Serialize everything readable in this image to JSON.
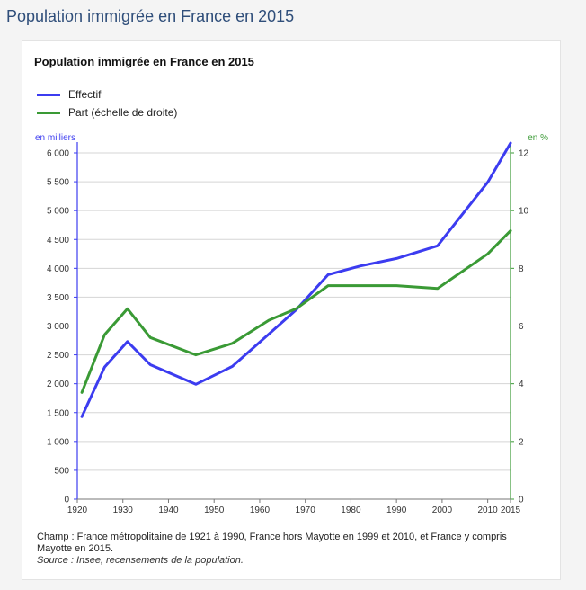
{
  "page": {
    "title": "Population immigrée en France en 2015"
  },
  "colors": {
    "effectif": "#3c3cf0",
    "part": "#3a9a35",
    "grid": "#d5d5d5",
    "left_axis": "#3c3cf0",
    "right_axis": "#3a9a35"
  },
  "chart_data": {
    "type": "line",
    "title": "Population immigrée en France en 2015",
    "legend_placement": "top-left",
    "grid": true,
    "y_unit_left": "en milliers",
    "y_unit_right": "en %",
    "xlim": [
      1920,
      2015
    ],
    "ylim_left": [
      0,
      6000
    ],
    "ylim_right": [
      0,
      12
    ],
    "x_ticks": [
      {
        "value": 1920,
        "label": "1920"
      },
      {
        "value": 1930,
        "label": "1930"
      },
      {
        "value": 1940,
        "label": "1940"
      },
      {
        "value": 1950,
        "label": "1950"
      },
      {
        "value": 1960,
        "label": "1960"
      },
      {
        "value": 1970,
        "label": "1970"
      },
      {
        "value": 1980,
        "label": "1980"
      },
      {
        "value": 1990,
        "label": "1990"
      },
      {
        "value": 2000,
        "label": "2000"
      },
      {
        "value": 2010,
        "label": "2010"
      },
      {
        "value": 2015,
        "label": "2015"
      }
    ],
    "y_ticks_left": [
      {
        "value": 0,
        "label": "0"
      },
      {
        "value": 500,
        "label": "500"
      },
      {
        "value": 1000,
        "label": "1 000"
      },
      {
        "value": 1500,
        "label": "1 500"
      },
      {
        "value": 2000,
        "label": "2 000"
      },
      {
        "value": 2500,
        "label": "2 500"
      },
      {
        "value": 3000,
        "label": "3 000"
      },
      {
        "value": 3500,
        "label": "3 500"
      },
      {
        "value": 4000,
        "label": "4 000"
      },
      {
        "value": 4500,
        "label": "4 500"
      },
      {
        "value": 5000,
        "label": "5 000"
      },
      {
        "value": 5500,
        "label": "5 500"
      },
      {
        "value": 6000,
        "label": "6 000"
      }
    ],
    "y_ticks_right": [
      {
        "value": 0,
        "label": "0"
      },
      {
        "value": 2,
        "label": "2"
      },
      {
        "value": 4,
        "label": "4"
      },
      {
        "value": 6,
        "label": "6"
      },
      {
        "value": 8,
        "label": "8"
      },
      {
        "value": 10,
        "label": "10"
      },
      {
        "value": 12,
        "label": "12"
      }
    ],
    "series": [
      {
        "name": "Effectif",
        "axis": "left",
        "color": "#3c3cf0",
        "x": [
          1921,
          1926,
          1931,
          1936,
          1946,
          1954,
          1962,
          1968,
          1975,
          1982,
          1990,
          1999,
          2010,
          2015
        ],
        "y": [
          1430,
          2290,
          2730,
          2330,
          1990,
          2300,
          2860,
          3280,
          3890,
          4040,
          4170,
          4390,
          5490,
          6170
        ]
      },
      {
        "name": "Part (échelle de droite)",
        "axis": "right",
        "color": "#3a9a35",
        "x": [
          1921,
          1926,
          1931,
          1936,
          1946,
          1954,
          1962,
          1968,
          1975,
          1982,
          1990,
          1999,
          2010,
          2015
        ],
        "y": [
          3.7,
          5.7,
          6.6,
          5.6,
          5.0,
          5.4,
          6.2,
          6.6,
          7.4,
          7.4,
          7.4,
          7.3,
          8.5,
          9.3
        ]
      }
    ]
  },
  "notes": {
    "champ": "Champ : France métropolitaine de 1921 à 1990, France hors Mayotte en 1999 et 2010, et France y compris Mayotte en 2015.",
    "source": "Source : Insee, recensements de la population."
  }
}
